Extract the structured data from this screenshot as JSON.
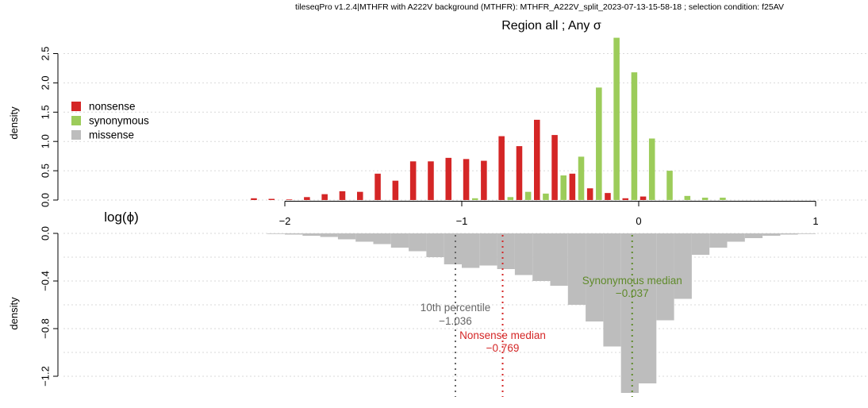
{
  "supertitle": "tileseqPro v1.2.4|MTHFR with A222V background (MTHFR): MTHFR_A222V_split_2023-07-13-15-58-18 ; selection condition: f25AV",
  "colors": {
    "nonsense": "#d42626",
    "synonymous": "#9ccc5a",
    "missense": "#bdbdbd",
    "synonymous_text": "#5f8a2a",
    "nonsense_text": "#d42626",
    "percentile_line": "#666666",
    "grid": "#d9d9d9"
  },
  "chart_data": [
    {
      "type": "bar",
      "title": "Region all ; Any σ",
      "xlabel": "log(ϕ)",
      "ylabel": "density",
      "xlim": [
        -2.2,
        1.0
      ],
      "ylim": [
        0,
        2.8
      ],
      "xticks": [
        "−2",
        "−1",
        "0",
        "1"
      ],
      "xtick_values": [
        -2,
        -1,
        0,
        1
      ],
      "yticks": [
        "0.0",
        "0.5",
        "1.0",
        "1.5",
        "2.0",
        "2.5"
      ],
      "ytick_values": [
        0,
        0.5,
        1.0,
        1.5,
        2.0,
        2.5
      ],
      "grid": true,
      "legend_position": "left",
      "bin_width": 0.1,
      "bin_starts": [
        -2.2,
        -2.1,
        -2.0,
        -1.9,
        -1.8,
        -1.7,
        -1.6,
        -1.5,
        -1.4,
        -1.3,
        -1.2,
        -1.1,
        -1.0,
        -0.9,
        -0.8,
        -0.7,
        -0.6,
        -0.5,
        -0.4,
        -0.3,
        -0.2,
        -0.1,
        0.0,
        0.1,
        0.2,
        0.3,
        0.4,
        0.5,
        0.6,
        0.7,
        0.8,
        0.9
      ],
      "series": [
        {
          "name": "nonsense",
          "values": [
            0.03,
            0.02,
            0.01,
            0.05,
            0.1,
            0.15,
            0.14,
            0.45,
            0.33,
            0.66,
            0.66,
            0.72,
            0.7,
            0.67,
            1.09,
            0.92,
            1.37,
            1.11,
            0.45,
            0.2,
            0.12,
            0.03,
            0.06,
            0,
            0,
            0,
            0,
            0,
            0,
            0,
            0,
            0
          ]
        },
        {
          "name": "synonymous",
          "values": [
            0,
            0,
            0,
            0,
            0,
            0,
            0,
            0,
            0,
            0,
            0,
            0,
            0.03,
            0,
            0.05,
            0.14,
            0.11,
            0.42,
            0.74,
            1.92,
            2.77,
            2.18,
            1.05,
            0.5,
            0.07,
            0.04,
            0.04,
            0,
            0,
            0,
            0,
            0
          ]
        }
      ]
    },
    {
      "type": "bar",
      "orientation": "inverted",
      "ylabel": "density",
      "ylim": [
        -1.38,
        0
      ],
      "yticks": [
        "0.0",
        "−0.4",
        "−0.8",
        "−1.2"
      ],
      "ytick_values": [
        0,
        -0.4,
        -0.8,
        -1.2
      ],
      "grid": true,
      "series": [
        {
          "name": "missense",
          "bin_width": 0.1,
          "bin_starts": [
            -2.1,
            -2.0,
            -1.9,
            -1.8,
            -1.7,
            -1.6,
            -1.5,
            -1.4,
            -1.3,
            -1.2,
            -1.1,
            -1.0,
            -0.9,
            -0.8,
            -0.7,
            -0.6,
            -0.5,
            -0.4,
            -0.3,
            -0.2,
            -0.1,
            0.0,
            0.1,
            0.2,
            0.3,
            0.4,
            0.5,
            0.6,
            0.7,
            0.8,
            0.9
          ],
          "values": [
            0.005,
            0.01,
            0.02,
            0.03,
            0.05,
            0.07,
            0.09,
            0.12,
            0.15,
            0.2,
            0.26,
            0.29,
            0.27,
            0.3,
            0.35,
            0.4,
            0.44,
            0.6,
            0.74,
            0.95,
            1.34,
            1.26,
            0.73,
            0.55,
            0.18,
            0.12,
            0.07,
            0.04,
            0.02,
            0.01,
            0.005
          ]
        }
      ],
      "annotations": [
        {
          "label": "10th percentile",
          "value_text": "−1.036",
          "x": -1.036,
          "color_key": "percentile_line"
        },
        {
          "label": "Nonsense median",
          "value_text": "−0.769",
          "x": -0.769,
          "color_key": "nonsense_text"
        },
        {
          "label": "Synonymous median",
          "value_text": "−0.037",
          "x": -0.037,
          "color_key": "synonymous_text"
        }
      ]
    }
  ]
}
